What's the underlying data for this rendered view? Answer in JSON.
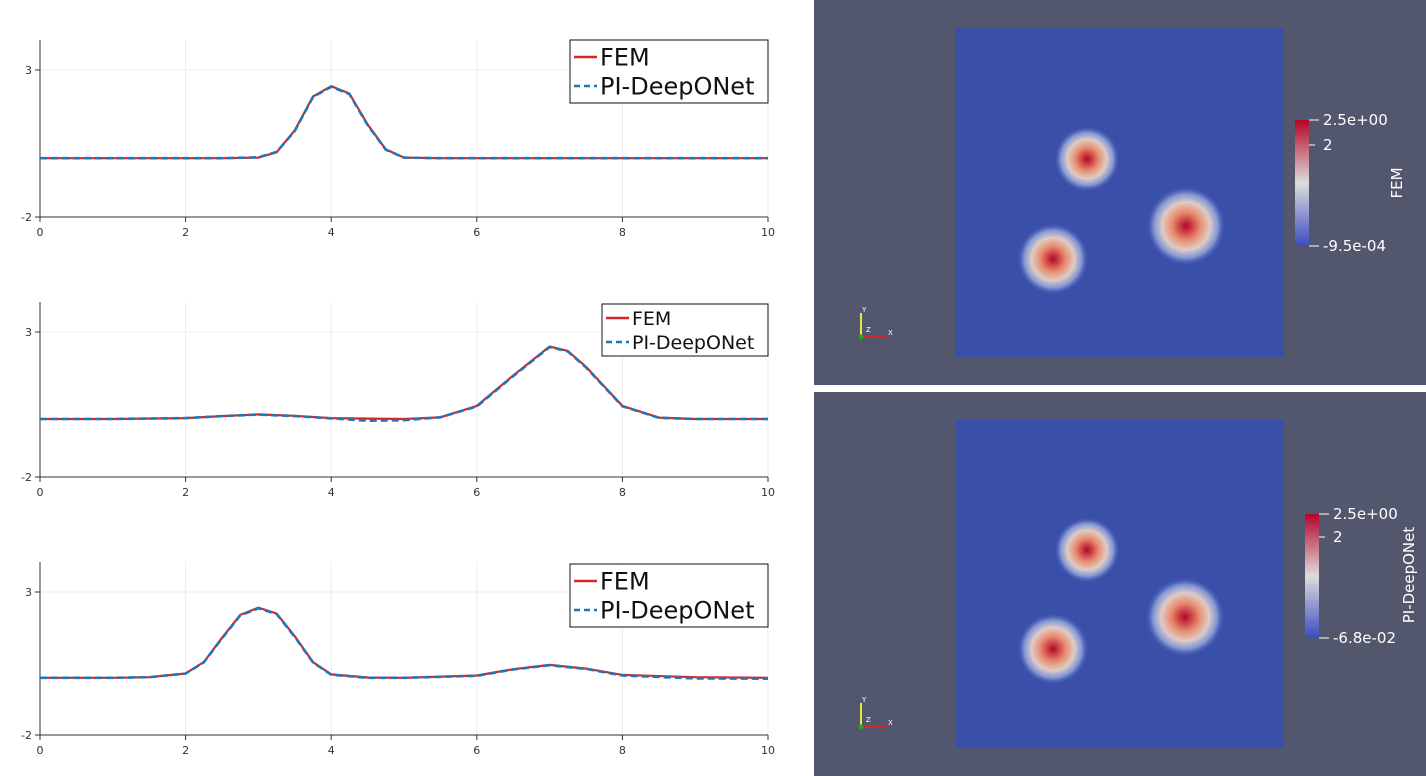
{
  "chart_data": [
    {
      "type": "line",
      "xlim": [
        0,
        10
      ],
      "ylim": [
        -2,
        3
      ],
      "xticks": [
        "0",
        "2",
        "4",
        "6",
        "8",
        "10"
      ],
      "yticks": [
        "3",
        "-2"
      ],
      "grid": true,
      "legend_position": "top-right",
      "series": [
        {
          "name": "FEM",
          "color": "#d62728",
          "style": "solid",
          "x": [
            0,
            1,
            2,
            2.5,
            3,
            3.25,
            3.5,
            3.75,
            4,
            4.25,
            4.5,
            4.75,
            5,
            5.5,
            6,
            7,
            8,
            9,
            10
          ],
          "y": [
            0,
            0,
            0,
            0,
            0.02,
            0.2,
            0.95,
            2.1,
            2.45,
            2.2,
            1.15,
            0.3,
            0.02,
            0,
            0,
            0,
            0,
            0,
            0
          ]
        },
        {
          "name": "PI-DeepONet",
          "color": "#1f77b4",
          "style": "dashed",
          "x": [
            0,
            1,
            2,
            2.5,
            3,
            3.25,
            3.5,
            3.75,
            4,
            4.25,
            4.5,
            4.75,
            5,
            5.5,
            6,
            7,
            8,
            9,
            10
          ],
          "y": [
            0,
            0,
            0,
            0,
            0.03,
            0.21,
            0.93,
            2.08,
            2.43,
            2.18,
            1.13,
            0.29,
            0.02,
            0,
            0,
            0,
            0,
            0,
            0
          ]
        }
      ]
    },
    {
      "type": "line",
      "xlim": [
        0,
        10
      ],
      "ylim": [
        -2,
        3
      ],
      "xticks": [
        "0",
        "2",
        "4",
        "6",
        "8",
        "10"
      ],
      "yticks": [
        "3",
        "-2"
      ],
      "grid": true,
      "legend_position": "top-right",
      "series": [
        {
          "name": "FEM",
          "color": "#d62728",
          "style": "solid",
          "x": [
            0,
            1,
            2,
            2.5,
            3,
            3.5,
            4,
            5,
            5.5,
            6,
            6.5,
            7,
            7.25,
            7.5,
            8,
            8.5,
            9,
            10
          ],
          "y": [
            0,
            0,
            0.03,
            0.1,
            0.16,
            0.11,
            0.03,
            0,
            0.06,
            0.45,
            1.5,
            2.5,
            2.35,
            1.8,
            0.45,
            0.05,
            0,
            0
          ]
        },
        {
          "name": "PI-DeepONet",
          "color": "#1f77b4",
          "style": "dashed",
          "x": [
            0,
            1,
            2,
            2.5,
            3,
            3.5,
            4,
            4.5,
            5,
            5.5,
            6,
            6.5,
            7,
            7.25,
            7.5,
            8,
            8.5,
            9,
            10
          ],
          "y": [
            0,
            0,
            0.03,
            0.1,
            0.15,
            0.1,
            0.02,
            -0.06,
            -0.04,
            0.06,
            0.43,
            1.48,
            2.48,
            2.33,
            1.78,
            0.44,
            0.04,
            0,
            0
          ]
        }
      ]
    },
    {
      "type": "line",
      "xlim": [
        0,
        10
      ],
      "ylim": [
        -2,
        3
      ],
      "xticks": [
        "0",
        "2",
        "4",
        "6",
        "8",
        "10"
      ],
      "yticks": [
        "3",
        "-2"
      ],
      "grid": true,
      "legend_position": "top-right",
      "series": [
        {
          "name": "FEM",
          "color": "#d62728",
          "style": "solid",
          "x": [
            0,
            1,
            1.5,
            2,
            2.25,
            2.5,
            2.75,
            3,
            3.25,
            3.5,
            3.75,
            4,
            4.5,
            5,
            6,
            6.5,
            7,
            7.5,
            8,
            9,
            10
          ],
          "y": [
            0,
            0,
            0.02,
            0.15,
            0.55,
            1.4,
            2.2,
            2.45,
            2.25,
            1.45,
            0.55,
            0.12,
            0.01,
            0,
            0.08,
            0.3,
            0.45,
            0.32,
            0.1,
            0.02,
            0
          ]
        },
        {
          "name": "PI-DeepONet",
          "color": "#1f77b4",
          "style": "dashed",
          "x": [
            0,
            1,
            1.5,
            2,
            2.25,
            2.5,
            2.75,
            3,
            3.25,
            3.5,
            3.75,
            4,
            4.5,
            5,
            6,
            6.5,
            7,
            7.5,
            8,
            9,
            10
          ],
          "y": [
            0,
            0,
            0.02,
            0.15,
            0.54,
            1.38,
            2.18,
            2.43,
            2.23,
            1.43,
            0.54,
            0.11,
            0.0,
            0,
            0.07,
            0.29,
            0.44,
            0.31,
            0.08,
            -0.02,
            -0.03
          ]
        }
      ]
    },
    {
      "type": "heatmap",
      "colorbar_title": "FEM",
      "colorbar_labels": {
        "max": "2.5e+00",
        "mid": "2",
        "min": "-9.5e-04"
      },
      "colormap": [
        "#3b4cc0",
        "#dddddd",
        "#b40426"
      ],
      "axes_labels": [
        "Y",
        "Z",
        "X"
      ]
    },
    {
      "type": "heatmap",
      "colorbar_title": "PI-DeepONet",
      "colorbar_labels": {
        "max": "2.5e+00",
        "mid": "2",
        "min": "-6.8e-02"
      },
      "colormap": [
        "#3b4cc0",
        "#dddddd",
        "#b40426"
      ],
      "axes_labels": [
        "Y",
        "Z",
        "X"
      ]
    }
  ]
}
